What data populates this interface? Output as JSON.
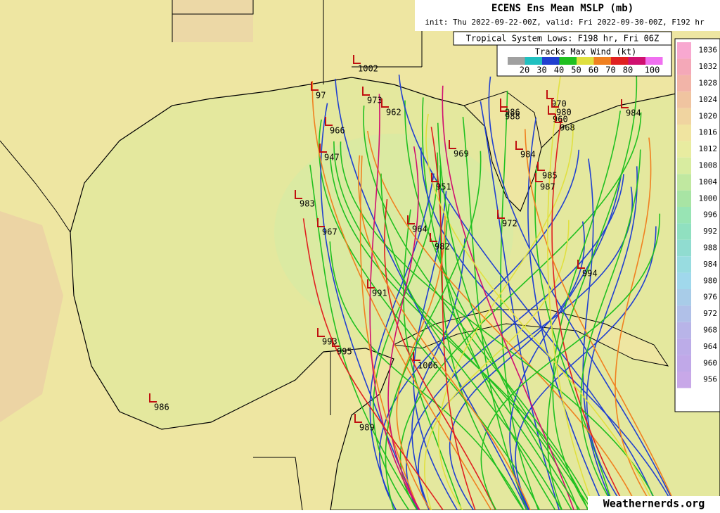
{
  "header": {
    "title": "ECENS Ens Mean MSLP (mb)",
    "subtitle": "init: Thu 2022-09-22-00Z, valid: Fri 2022-09-30-00Z, F192 hr",
    "lows_title": "Tropical System Lows: F198 hr, Fri 06Z"
  },
  "wind_legend": {
    "title": "Tracks Max Wind (kt)",
    "labels": [
      "20",
      "30",
      "40",
      "50",
      "60",
      "70",
      "80",
      "100"
    ],
    "colors": [
      "#a0a0a0",
      "#20c0c0",
      "#2040d0",
      "#20c020",
      "#e0e040",
      "#f08020",
      "#e02020",
      "#d01070",
      "#f070f0"
    ]
  },
  "pressure_bar": {
    "labels": [
      "1036",
      "1032",
      "1028",
      "1024",
      "1020",
      "1016",
      "1012",
      "1008",
      "1004",
      "1000",
      "996",
      "992",
      "988",
      "984",
      "980",
      "976",
      "972",
      "968",
      "964",
      "960",
      "956"
    ],
    "colors": [
      "#f8a8d0",
      "#f4a8b8",
      "#f2b4a8",
      "#f0c4a0",
      "#f0d4a0",
      "#f0e4a0",
      "#e8eca0",
      "#d8eca0",
      "#c0e8a0",
      "#a8e4a4",
      "#98e4b4",
      "#90e0c0",
      "#90dcd0",
      "#98dce0",
      "#a0d8ec",
      "#a8cce8",
      "#b0c0e8",
      "#b8b4e8",
      "#bcace8",
      "#c0a8e8",
      "#c8a8e8"
    ]
  },
  "lows": [
    "1002",
    "97",
    "973",
    "962",
    "966",
    "947",
    "983",
    "967",
    "969",
    "951",
    "964",
    "982",
    "991",
    "993",
    "995",
    "1006",
    "986",
    "989",
    "986",
    "988",
    "970",
    "980",
    "960",
    "968",
    "984",
    "985",
    "987",
    "972",
    "984",
    "994"
  ],
  "watermark": "Weathernerds.org"
}
